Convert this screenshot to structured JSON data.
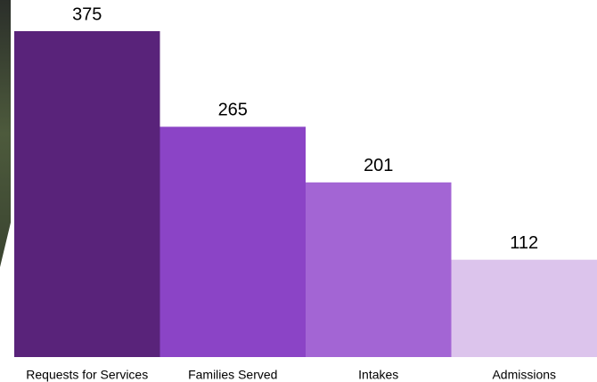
{
  "chart_data": {
    "type": "bar",
    "categories": [
      "Requests for Services",
      "Families Served",
      "Intakes",
      "Admissions"
    ],
    "values": [
      375,
      265,
      201,
      112
    ],
    "colors": [
      "#59237a",
      "#8b44c6",
      "#a365d4",
      "#dcc4ec"
    ]
  }
}
